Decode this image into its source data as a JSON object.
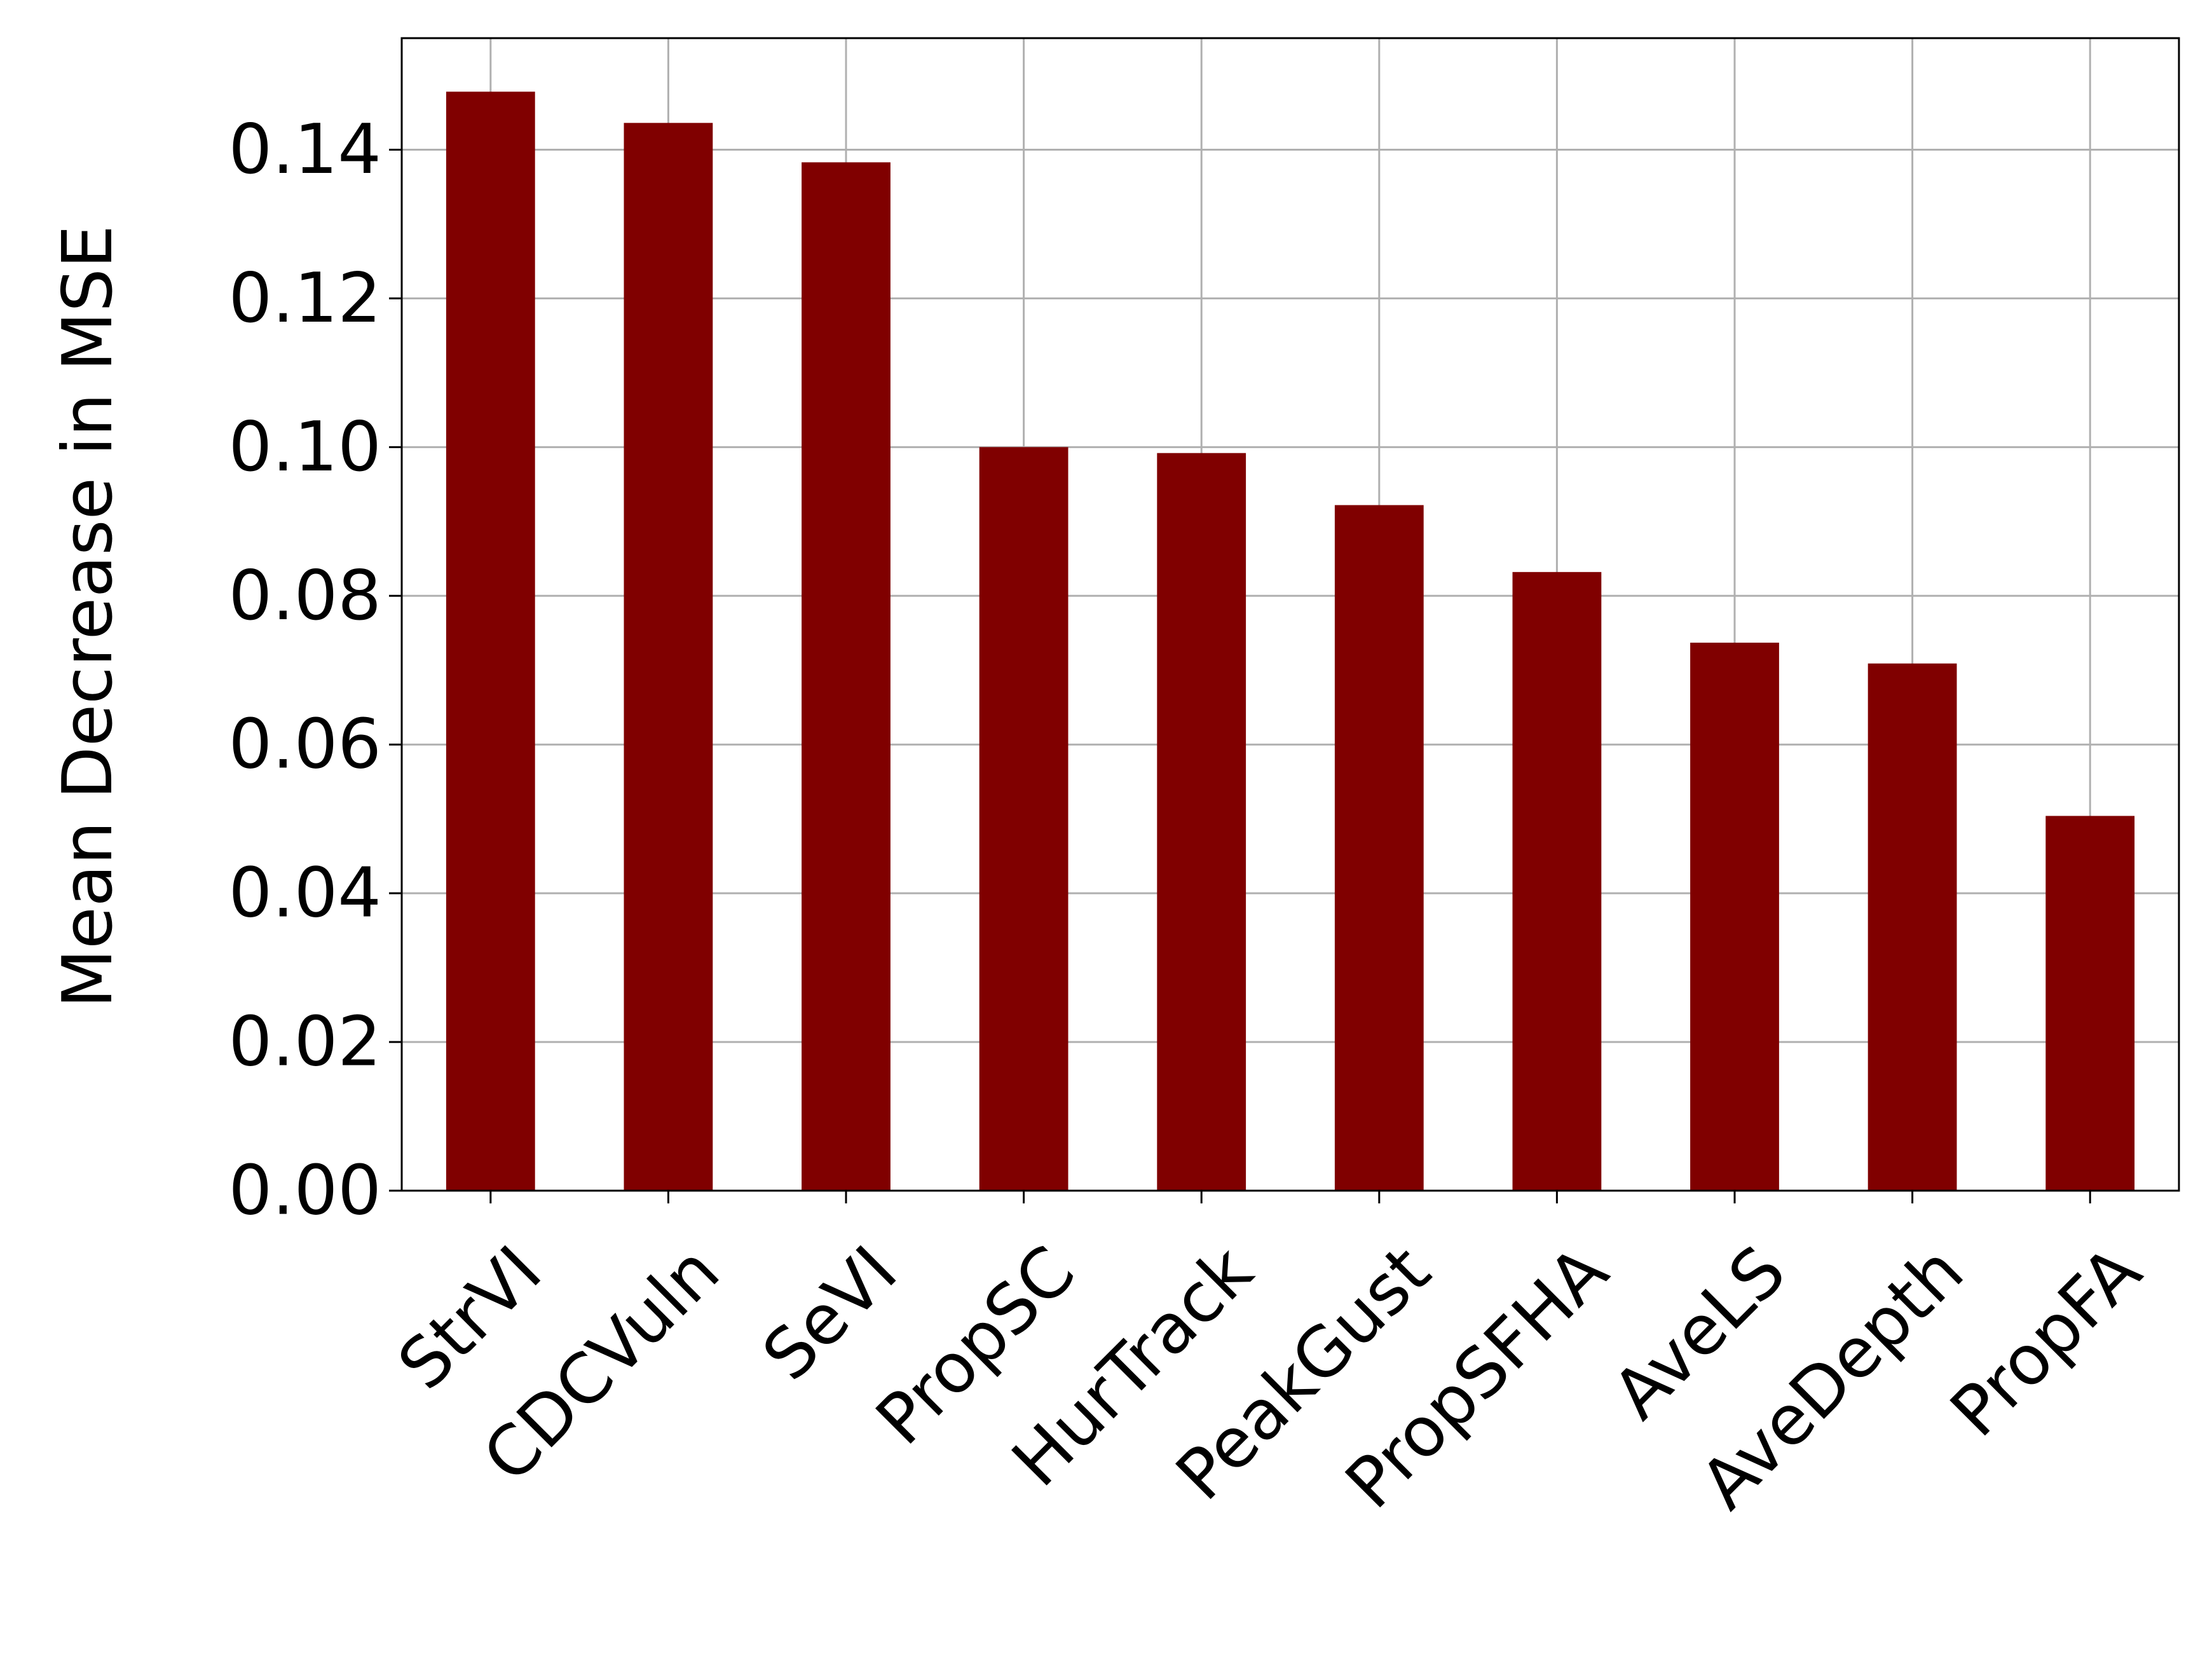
{
  "chart_data": {
    "type": "bar",
    "categories": [
      "StrVI",
      "CDCVuln",
      "SeVI",
      "PropSC",
      "HurTrack",
      "PeakGust",
      "PropSFHA",
      "AveLS",
      "AveDepth",
      "PropFA"
    ],
    "values": [
      0.1478,
      0.1436,
      0.1383,
      0.1,
      0.0992,
      0.0922,
      0.0832,
      0.0737,
      0.0709,
      0.0504
    ],
    "title": "",
    "xlabel": "",
    "ylabel": "Mean Decrease in MSE",
    "ylim": [
      0,
      0.155
    ],
    "yticks": [
      "0.00",
      "0.02",
      "0.04",
      "0.06",
      "0.08",
      "0.10",
      "0.12",
      "0.14"
    ],
    "ytick_values": [
      0,
      0.02,
      0.04,
      0.06,
      0.08,
      0.1,
      0.12,
      0.14
    ],
    "grid": true,
    "bar_color": "#800000",
    "grid_color": "#b0b0b0"
  }
}
